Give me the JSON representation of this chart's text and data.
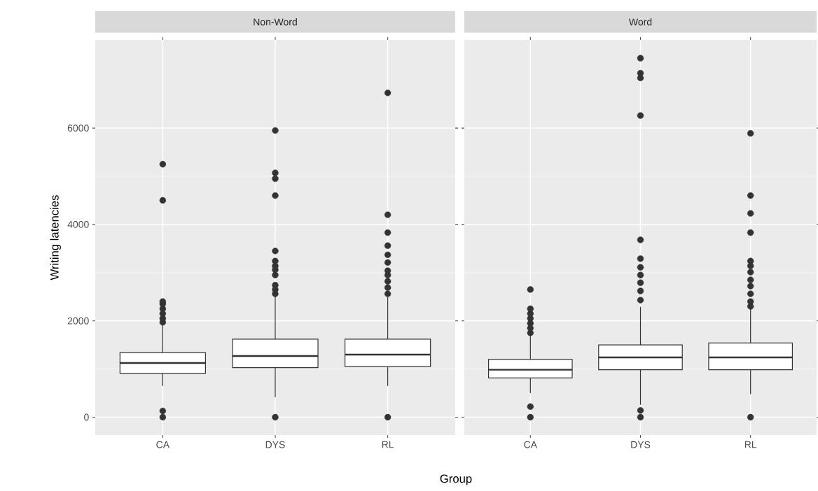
{
  "chart_data": [
    {
      "type": "box",
      "title": "Non-Word",
      "xlabel": "Group",
      "ylabel": "Writing latencies",
      "categories": [
        "CA",
        "DYS",
        "RL"
      ],
      "ylim": [
        -370,
        7830
      ],
      "yticks": [
        0,
        2000,
        4000,
        6000
      ],
      "grid": true,
      "boxes": [
        {
          "low": 650,
          "q1": 910,
          "median": 1125,
          "q3": 1340,
          "high": 1940,
          "outliers": [
            0,
            130,
            1970,
            2050,
            2150,
            2250,
            2350,
            2400,
            4500,
            5250
          ]
        },
        {
          "low": 415,
          "q1": 1030,
          "median": 1270,
          "q3": 1620,
          "high": 2520,
          "outliers": [
            0,
            2560,
            2650,
            2740,
            2950,
            3060,
            3140,
            3240,
            3450,
            4600,
            4950,
            5070,
            5950
          ]
        },
        {
          "low": 650,
          "q1": 1050,
          "median": 1300,
          "q3": 1620,
          "high": 2490,
          "outliers": [
            0,
            2560,
            2690,
            2820,
            2950,
            3040,
            3210,
            3370,
            3560,
            3830,
            4200,
            6730
          ]
        }
      ]
    },
    {
      "type": "box",
      "title": "Word",
      "categories": [
        "CA",
        "DYS",
        "RL"
      ],
      "ylim": [
        -370,
        7830
      ],
      "yticks": [
        0,
        2000,
        4000,
        6000
      ],
      "grid": true,
      "tick_labels": "x",
      "boxes": [
        {
          "low": 500,
          "q1": 815,
          "median": 985,
          "q3": 1200,
          "high": 1690,
          "outliers": [
            0,
            220,
            1750,
            1850,
            1950,
            2050,
            2150,
            2250,
            2650
          ]
        },
        {
          "low": 260,
          "q1": 985,
          "median": 1240,
          "q3": 1500,
          "high": 2290,
          "outliers": [
            0,
            140,
            2430,
            2620,
            2790,
            2950,
            3110,
            3290,
            3680,
            6260,
            7040,
            7140,
            7450
          ]
        },
        {
          "low": 480,
          "q1": 985,
          "median": 1240,
          "q3": 1540,
          "high": 2270,
          "outliers": [
            0,
            2300,
            2400,
            2560,
            2720,
            2850,
            3010,
            3140,
            3240,
            3830,
            4230,
            4600,
            5890
          ]
        }
      ]
    }
  ]
}
